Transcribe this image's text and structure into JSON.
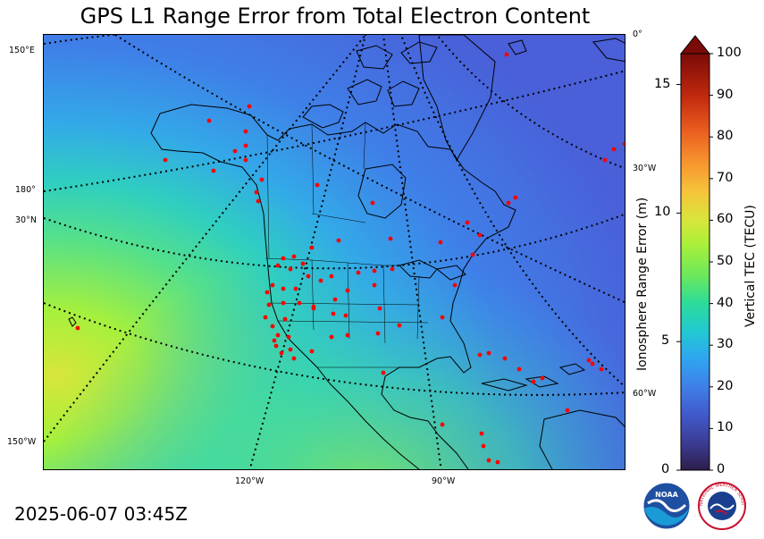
{
  "title": "GPS L1 Range Error from Total Electron Content",
  "timestamp": "2025-06-07 03:45Z",
  "map": {
    "grid_labels": {
      "lon_150e": "150°E",
      "lon_180": "180°",
      "lat_30n": "30°N",
      "lon_150w": "150°W",
      "lon_0": "0°",
      "lon_30w": "30°W",
      "lon_60w": "60°W",
      "lon_120w": "120°W",
      "lon_90w": "90°W"
    },
    "station_marker_color": "#ff0000"
  },
  "colorbar": {
    "left_axis_label": "Ionosphere Range Error (m)",
    "left_ticks": [
      "0",
      "5",
      "10",
      "15"
    ],
    "right_axis_label": "Vertical TEC (TECU)",
    "right_ticks": [
      "0",
      "10",
      "20",
      "30",
      "40",
      "50",
      "60",
      "70",
      "80",
      "90",
      "100"
    ],
    "tec_min": 0,
    "tec_max": 100,
    "range_error_max_m": 16.2,
    "extend": "max"
  },
  "logos": {
    "noaa": "NOAA",
    "nws": "NATIONAL WEATHER SERVICE"
  }
}
